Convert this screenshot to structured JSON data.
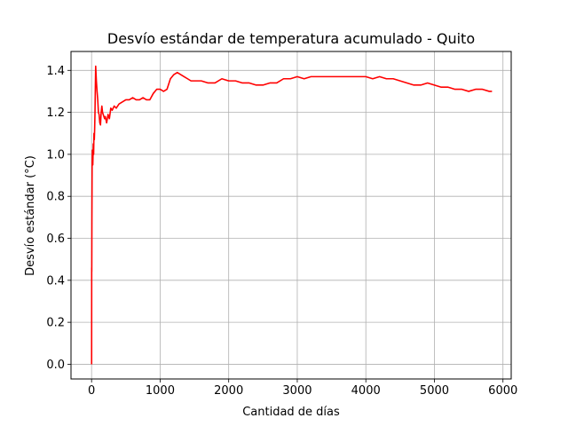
{
  "chart_data": {
    "type": "line",
    "title": "Desvío estándar de temperatura acumulado - Quito",
    "xlabel": "Cantidad de días",
    "ylabel": "Desvío estándar (°C)",
    "xlim": [
      -300,
      6120
    ],
    "ylim": [
      -0.07,
      1.49
    ],
    "xticks": [
      0,
      1000,
      2000,
      3000,
      4000,
      5000,
      6000
    ],
    "yticks": [
      0.0,
      0.2,
      0.4,
      0.6,
      0.8,
      1.0,
      1.2,
      1.4
    ],
    "xtick_labels": [
      "0",
      "1000",
      "2000",
      "3000",
      "4000",
      "5000",
      "6000"
    ],
    "ytick_labels": [
      "0.0",
      "0.2",
      "0.4",
      "0.6",
      "0.8",
      "1.0",
      "1.2",
      "1.4"
    ],
    "grid": true,
    "legend": "none",
    "series": [
      {
        "color": "#ff0000",
        "x": [
          1,
          2,
          3,
          5,
          8,
          12,
          18,
          25,
          30,
          35,
          40,
          45,
          50,
          55,
          60,
          70,
          80,
          90,
          100,
          110,
          120,
          130,
          140,
          150,
          160,
          170,
          180,
          190,
          200,
          220,
          240,
          260,
          280,
          300,
          330,
          360,
          400,
          450,
          500,
          550,
          600,
          650,
          700,
          750,
          800,
          850,
          900,
          950,
          1000,
          1050,
          1100,
          1150,
          1200,
          1250,
          1300,
          1350,
          1400,
          1450,
          1500,
          1600,
          1700,
          1800,
          1900,
          2000,
          2100,
          2200,
          2300,
          2400,
          2500,
          2600,
          2700,
          2800,
          2900,
          3000,
          3100,
          3200,
          3300,
          3400,
          3500,
          3600,
          3700,
          3800,
          3900,
          4000,
          4100,
          4200,
          4300,
          4400,
          4500,
          4600,
          4700,
          4800,
          4900,
          5000,
          5100,
          5200,
          5300,
          5400,
          5500,
          5600,
          5700,
          5800,
          5840
        ],
        "y": [
          0.0,
          0.46,
          0.44,
          0.7,
          0.96,
          1.02,
          0.95,
          1.05,
          1.0,
          1.1,
          1.07,
          1.12,
          1.2,
          1.32,
          1.42,
          1.35,
          1.3,
          1.26,
          1.2,
          1.19,
          1.15,
          1.14,
          1.2,
          1.23,
          1.2,
          1.19,
          1.18,
          1.17,
          1.18,
          1.15,
          1.19,
          1.17,
          1.22,
          1.21,
          1.23,
          1.22,
          1.24,
          1.25,
          1.26,
          1.26,
          1.27,
          1.26,
          1.26,
          1.27,
          1.26,
          1.26,
          1.29,
          1.31,
          1.31,
          1.3,
          1.31,
          1.36,
          1.38,
          1.39,
          1.38,
          1.37,
          1.36,
          1.35,
          1.35,
          1.35,
          1.34,
          1.34,
          1.36,
          1.35,
          1.35,
          1.34,
          1.34,
          1.33,
          1.33,
          1.34,
          1.34,
          1.36,
          1.36,
          1.37,
          1.36,
          1.37,
          1.37,
          1.37,
          1.37,
          1.37,
          1.37,
          1.37,
          1.37,
          1.37,
          1.36,
          1.37,
          1.36,
          1.36,
          1.35,
          1.34,
          1.33,
          1.33,
          1.34,
          1.33,
          1.32,
          1.32,
          1.31,
          1.31,
          1.3,
          1.31,
          1.31,
          1.3,
          1.3
        ]
      }
    ]
  }
}
